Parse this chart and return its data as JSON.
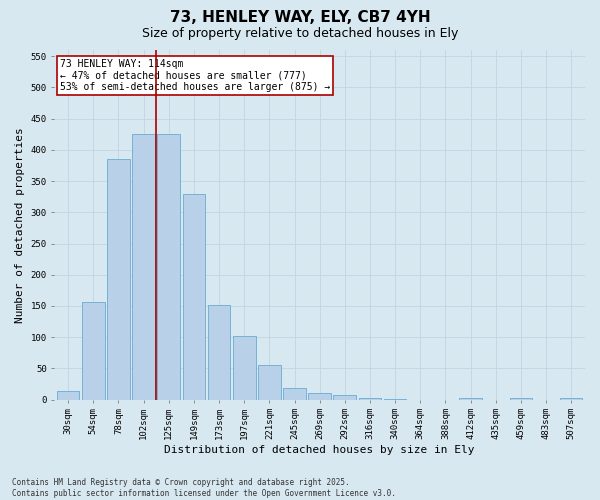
{
  "title": "73, HENLEY WAY, ELY, CB7 4YH",
  "subtitle": "Size of property relative to detached houses in Ely",
  "xlabel": "Distribution of detached houses by size in Ely",
  "ylabel": "Number of detached properties",
  "categories": [
    "30sqm",
    "54sqm",
    "78sqm",
    "102sqm",
    "125sqm",
    "149sqm",
    "173sqm",
    "197sqm",
    "221sqm",
    "245sqm",
    "269sqm",
    "292sqm",
    "316sqm",
    "340sqm",
    "364sqm",
    "388sqm",
    "412sqm",
    "435sqm",
    "459sqm",
    "483sqm",
    "507sqm"
  ],
  "values": [
    14,
    157,
    385,
    425,
    425,
    330,
    152,
    102,
    55,
    18,
    10,
    7,
    3,
    1,
    0,
    0,
    3,
    0,
    3,
    0,
    3
  ],
  "bar_color": "#b8d0e8",
  "bar_edge_color": "#6aaad4",
  "vline_x": 3.5,
  "vline_color": "#aa0000",
  "annotation_title": "73 HENLEY WAY: 114sqm",
  "annotation_line2": "← 47% of detached houses are smaller (777)",
  "annotation_line3": "53% of semi-detached houses are larger (875) →",
  "annotation_box_color": "#aa0000",
  "annotation_bg": "#ffffff",
  "ylim": [
    0,
    560
  ],
  "yticks": [
    0,
    50,
    100,
    150,
    200,
    250,
    300,
    350,
    400,
    450,
    500,
    550
  ],
  "grid_color": "#c0d4e4",
  "bg_color": "#d8e8f0",
  "plot_bg_color": "#d8e8f0",
  "footer_line1": "Contains HM Land Registry data © Crown copyright and database right 2025.",
  "footer_line2": "Contains public sector information licensed under the Open Government Licence v3.0.",
  "title_fontsize": 11,
  "subtitle_fontsize": 9,
  "tick_fontsize": 6.5,
  "label_fontsize": 8,
  "footer_fontsize": 5.5,
  "annotation_fontsize": 7
}
